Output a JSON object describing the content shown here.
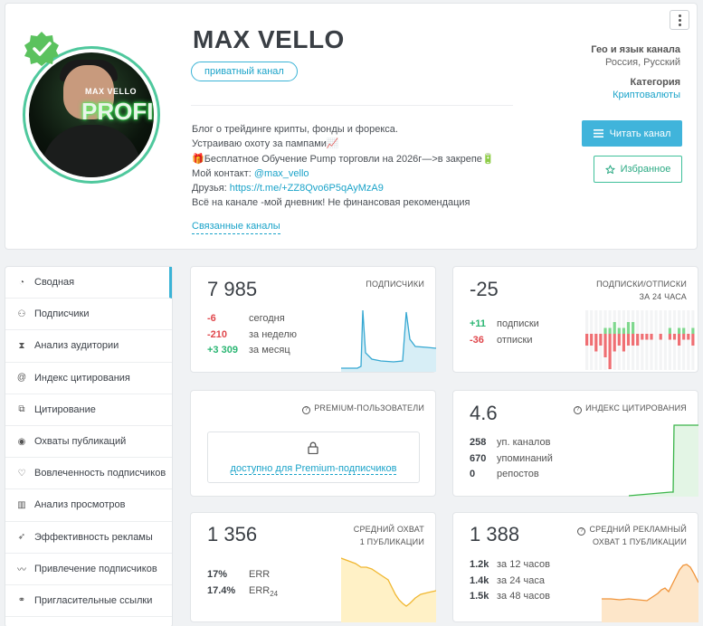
{
  "channel": {
    "title": "MAX VELLO",
    "badge": "приватный канал",
    "avatar_text_top": "MAX VELLO",
    "avatar_text_big": "PROFIX",
    "description": [
      {
        "text": "Блог о трейдинге крипты, фонды и форекса."
      },
      {
        "text": "Устраиваю охоту за пампами📈"
      },
      {
        "text": "🎁Бесплатное Обучение Pump торговли на 2026г—>в закрепе🔋"
      },
      {
        "prefix": "Мой контакт: ",
        "link": "@max_vello"
      },
      {
        "prefix": "Друзья: ",
        "link": "https://t.me/+ZZ8Qvo6P5qAyMzA9"
      },
      {
        "text": "Всё на канале -мой дневник! Не финансовая рекомендация"
      }
    ],
    "related_label": "Связанные каналы",
    "geo_label": "Гео и язык канала",
    "geo_value": "Россия, Русский",
    "category_label": "Категория",
    "category_value": "Криптовалюты",
    "read_button": "Читать канал",
    "favorite_button": "Избранное"
  },
  "sidebar": {
    "items": [
      {
        "label": "Сводная",
        "icon": "summary-icon"
      },
      {
        "label": "Подписчики",
        "icon": "users-icon"
      },
      {
        "label": "Анализ аудитории",
        "icon": "hourglass-icon"
      },
      {
        "label": "Индекс цитирования",
        "icon": "at-icon"
      },
      {
        "label": "Цитирование",
        "icon": "copy-icon"
      },
      {
        "label": "Охваты публикаций",
        "icon": "eye-icon"
      },
      {
        "label": "Вовлеченность подписчиков",
        "icon": "heart-icon"
      },
      {
        "label": "Анализ просмотров",
        "icon": "bar-chart-icon"
      },
      {
        "label": "Эффективность рекламы",
        "icon": "rocket-icon"
      },
      {
        "label": "Привлечение подписчиков",
        "icon": "trend-icon"
      },
      {
        "label": "Пригласительные ссылки",
        "icon": "link-icon"
      }
    ]
  },
  "subscribers": {
    "title": "ПОДПИСЧИКИ",
    "value": "7 985",
    "rows": [
      {
        "num": "-6",
        "label": "сегодня"
      },
      {
        "num": "-210",
        "label": "за неделю"
      },
      {
        "num": "+3 309",
        "label": "за месяц"
      }
    ]
  },
  "subs_unsubs": {
    "title_line1": "ПОДПИСКИ/ОТПИСКИ",
    "title_line2": "ЗА 24 ЧАСА",
    "value": "-25",
    "rows": [
      {
        "num": "+11",
        "label": "подписки"
      },
      {
        "num": "-36",
        "label": "отписки"
      }
    ]
  },
  "premium": {
    "title": "PREMIUM-ПОЛЬЗОВАТЕЛИ",
    "link": "доступно для Premium-подписчиков"
  },
  "citation": {
    "title": "ИНДЕКС ЦИТИРОВАНИЯ",
    "value": "4.6",
    "rows": [
      {
        "num": "258",
        "label": "уп. каналов"
      },
      {
        "num": "670",
        "label": "упоминаний"
      },
      {
        "num": "0",
        "label": "репостов"
      }
    ]
  },
  "reach": {
    "title_line1": "СРЕДНИЙ ОХВАТ",
    "title_line2": "1 ПУБЛИКАЦИИ",
    "value": "1 356",
    "rows": [
      {
        "num": "17%",
        "label": "ERR"
      },
      {
        "num": "17.4%",
        "label": "ERR",
        "sub": "24"
      }
    ]
  },
  "ad_reach": {
    "title_line1": "СРЕДНИЙ РЕКЛАМНЫЙ",
    "title_line2": "ОХВАТ 1 ПУБЛИКАЦИИ",
    "value": "1 388",
    "rows": [
      {
        "num": "1.2k",
        "label": "за 12 часов"
      },
      {
        "num": "1.4k",
        "label": "за 24 часа"
      },
      {
        "num": "1.5k",
        "label": "за 48 часов"
      }
    ]
  },
  "colors": {
    "accent": "#40b4db",
    "green": "#2bb673",
    "red": "#e0474c",
    "orange": "#f0a33a",
    "yellow": "#f5c842"
  }
}
